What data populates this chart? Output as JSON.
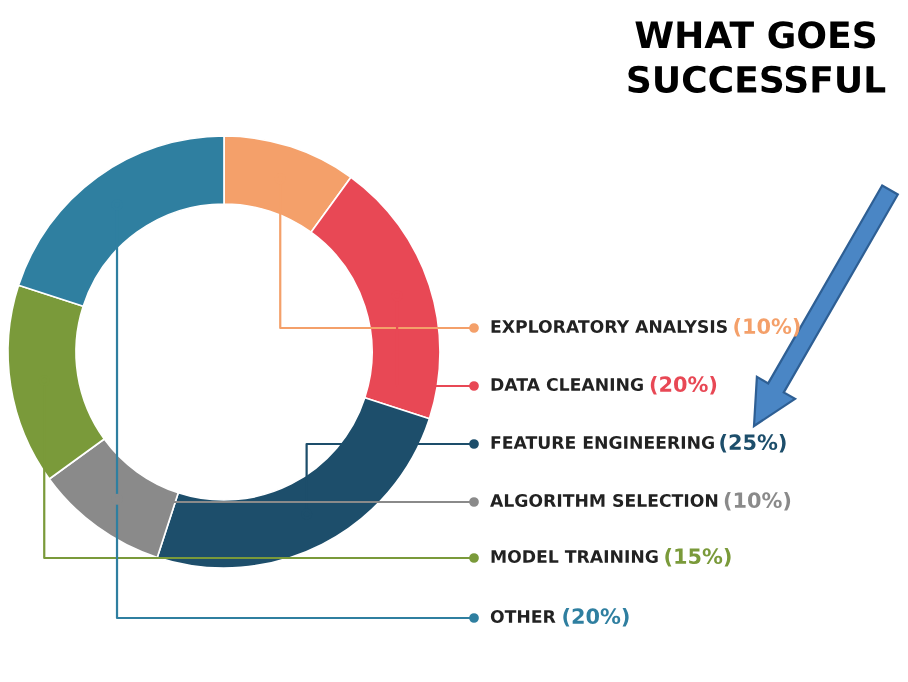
{
  "chart_data": {
    "type": "donut",
    "title": "WHAT GOES\nSUCCESSFUL",
    "categories": [
      "EXPLORATORY ANALYSIS",
      "DATA CLEANING",
      "FEATURE ENGINEERING",
      "ALGORITHM SELECTION",
      "MODEL TRAINING",
      "OTHER"
    ],
    "values": [
      10,
      20,
      25,
      10,
      15,
      20
    ],
    "colors": [
      "#f4a06a",
      "#e84855",
      "#1d4e6b",
      "#8a8a8a",
      "#7a9a3a",
      "#2f7fa0"
    ],
    "legend": "right",
    "value_labels": [
      "(10%)",
      "(20%)",
      "(25%)",
      "(10%)",
      "(15%)",
      "(20%)"
    ]
  }
}
